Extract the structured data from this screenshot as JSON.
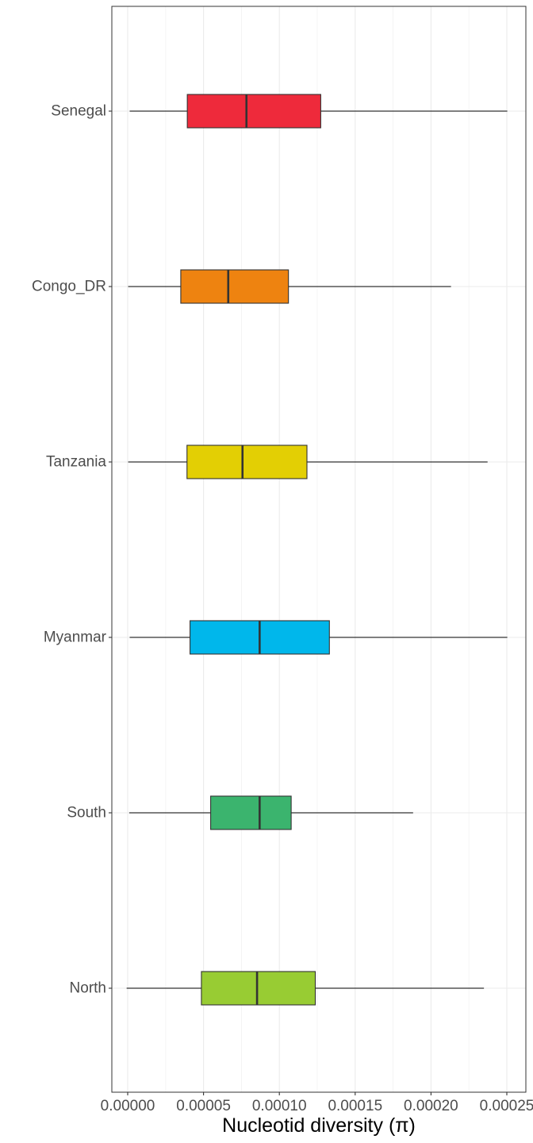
{
  "chart_data": {
    "type": "boxplot",
    "orientation": "horizontal",
    "xlabel": "Nucleotid diversity (π)",
    "ylabel": "",
    "xlim": [
      -1.2e-05,
      0.000252
    ],
    "xticks": [
      0,
      5e-05,
      0.0001,
      0.00015,
      0.0002,
      0.00025
    ],
    "xtick_labels": [
      "0.00000",
      "0.00005",
      "0.00010",
      "0.00015",
      "0.00020",
      "0.00025"
    ],
    "grid": true,
    "categories": [
      "Senegal",
      "Congo_DR",
      "Tanzania",
      "Myanmar",
      "South",
      "North"
    ],
    "boxes": [
      {
        "name": "Senegal",
        "min": 1.3e-06,
        "q1": 3.93e-05,
        "median": 7.83e-05,
        "q3": 0.0001273,
        "max": 0.0002503,
        "color": "#EE2A3B"
      },
      {
        "name": "Congo_DR",
        "min": 3e-07,
        "q1": 3.5e-05,
        "median": 6.63e-05,
        "q3": 0.000106,
        "max": 0.0002132,
        "color": "#EE8310"
      },
      {
        "name": "Tanzania",
        "min": 3e-07,
        "q1": 3.91e-05,
        "median": 7.57e-05,
        "q3": 0.0001182,
        "max": 0.0002373,
        "color": "#E3CF04"
      },
      {
        "name": "Myanmar",
        "min": 1.3e-06,
        "q1": 4.11e-05,
        "median": 8.7e-05,
        "q3": 0.000133,
        "max": 0.0002503,
        "color": "#00B7EB"
      },
      {
        "name": "South",
        "min": 1e-06,
        "q1": 5.47e-05,
        "median": 8.7e-05,
        "q3": 0.0001078,
        "max": 0.0001882,
        "color": "#3BB46E"
      },
      {
        "name": "North",
        "min": -7e-07,
        "q1": 4.86e-05,
        "median": 8.53e-05,
        "q3": 0.0001237,
        "max": 0.0002349,
        "color": "#98CC33"
      }
    ]
  }
}
